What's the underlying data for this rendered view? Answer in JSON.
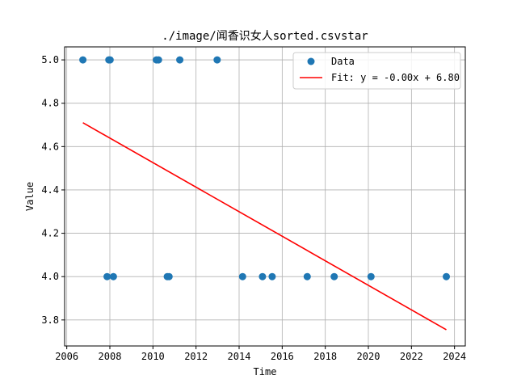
{
  "chart_data": {
    "type": "scatter",
    "title": "./image/闻香识女人sorted.csvstar",
    "xlabel": "Time",
    "ylabel": "Value",
    "xlim": [
      2005.9,
      2024.5
    ],
    "ylim": [
      3.68,
      5.06
    ],
    "x_ticks": [
      2006,
      2008,
      2010,
      2012,
      2014,
      2016,
      2018,
      2020,
      2022,
      2024
    ],
    "y_ticks": [
      3.8,
      4.0,
      4.2,
      4.4,
      4.6,
      4.8,
      5.0
    ],
    "x_tick_labels": [
      "2006",
      "2008",
      "2010",
      "2012",
      "2014",
      "2016",
      "2018",
      "2020",
      "2022",
      "2024"
    ],
    "y_tick_labels": [
      "3.8",
      "4.0",
      "4.2",
      "4.4",
      "4.6",
      "4.8",
      "5.0"
    ],
    "grid": true,
    "legend_position": "top-right",
    "series": [
      {
        "name": "Data",
        "kind": "scatter",
        "color": "#1f77b4",
        "points": [
          {
            "x": "2006-10-01",
            "y": 5.0
          },
          {
            "x": "2007-12-15",
            "y": 5.0
          },
          {
            "x": "2008-01-05",
            "y": 5.0
          },
          {
            "x": "2010-03-01",
            "y": 5.0
          },
          {
            "x": "2010-04-05",
            "y": 5.0
          },
          {
            "x": "2011-04-01",
            "y": 5.0
          },
          {
            "x": "2012-12-25",
            "y": 5.0
          },
          {
            "x": "2007-11-15",
            "y": 4.0
          },
          {
            "x": "2008-03-01",
            "y": 4.0
          },
          {
            "x": "2010-09-01",
            "y": 4.0
          },
          {
            "x": "2010-10-01",
            "y": 4.0
          },
          {
            "x": "2014-03-01",
            "y": 4.0
          },
          {
            "x": "2015-02-01",
            "y": 4.0
          },
          {
            "x": "2015-07-15",
            "y": 4.0
          },
          {
            "x": "2017-03-01",
            "y": 4.0
          },
          {
            "x": "2018-06-01",
            "y": 4.0
          },
          {
            "x": "2020-02-15",
            "y": 4.0
          },
          {
            "x": "2023-08-15",
            "y": 4.0
          }
        ]
      },
      {
        "name": "Fit: y = -0.00x + 6.80",
        "kind": "line",
        "color": "#ff0000",
        "points": [
          {
            "x": "2006-10-01",
            "y": 4.71
          },
          {
            "x": "2023-08-15",
            "y": 3.755
          }
        ]
      }
    ]
  }
}
